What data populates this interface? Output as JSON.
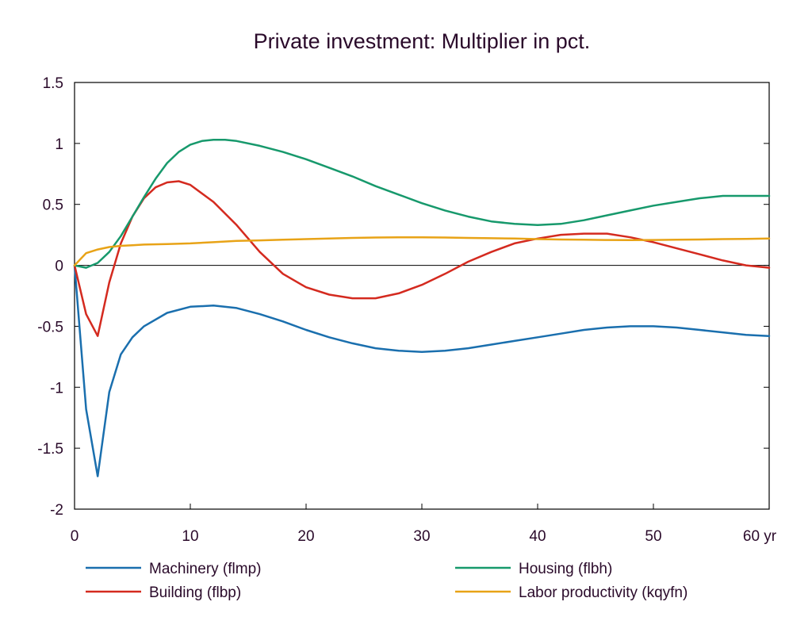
{
  "chart_data": {
    "type": "line",
    "title": "Private investment: Multiplier in pct.",
    "xlabel": "",
    "ylabel": "",
    "xlim": [
      0,
      60
    ],
    "ylim": [
      -2,
      1.5
    ],
    "x_ticks": [
      0,
      10,
      20,
      30,
      40,
      50,
      60
    ],
    "x_tick_labels": [
      "0",
      "10",
      "20",
      "30",
      "40",
      "50",
      "60 yr"
    ],
    "y_ticks": [
      1.5,
      1,
      0.5,
      0,
      -0.5,
      -1,
      -1.5,
      -2
    ],
    "y_tick_labels": [
      "1.5",
      "1",
      "0.5",
      "0",
      "-0.5",
      "-1",
      "-1.5",
      "-2"
    ],
    "grid": false,
    "zero_line": true,
    "legend_position": "bottom",
    "series": [
      {
        "name": "Machinery (flmp)",
        "color": "#1a6fae",
        "x": [
          0,
          1,
          2,
          3,
          4,
          5,
          6,
          8,
          10,
          12,
          14,
          16,
          18,
          20,
          22,
          24,
          26,
          28,
          30,
          32,
          34,
          36,
          38,
          40,
          42,
          44,
          46,
          48,
          50,
          52,
          54,
          56,
          58,
          60
        ],
        "y": [
          0,
          -1.18,
          -1.73,
          -1.04,
          -0.73,
          -0.59,
          -0.5,
          -0.39,
          -0.34,
          -0.33,
          -0.35,
          -0.4,
          -0.46,
          -0.53,
          -0.59,
          -0.64,
          -0.68,
          -0.7,
          -0.71,
          -0.7,
          -0.68,
          -0.65,
          -0.62,
          -0.59,
          -0.56,
          -0.53,
          -0.51,
          -0.5,
          -0.5,
          -0.51,
          -0.53,
          -0.55,
          -0.57,
          -0.58
        ]
      },
      {
        "name": "Building (flbp)",
        "color": "#d42a1f",
        "x": [
          0,
          1,
          2,
          3,
          4,
          5,
          6,
          7,
          8,
          9,
          10,
          12,
          14,
          16,
          18,
          20,
          22,
          24,
          26,
          28,
          30,
          32,
          34,
          36,
          38,
          40,
          42,
          44,
          46,
          48,
          50,
          52,
          54,
          56,
          58,
          60
        ],
        "y": [
          0,
          -0.4,
          -0.58,
          -0.14,
          0.18,
          0.4,
          0.55,
          0.64,
          0.68,
          0.69,
          0.66,
          0.52,
          0.33,
          0.11,
          -0.07,
          -0.18,
          -0.24,
          -0.27,
          -0.27,
          -0.23,
          -0.16,
          -0.07,
          0.03,
          0.11,
          0.18,
          0.22,
          0.25,
          0.26,
          0.26,
          0.23,
          0.19,
          0.14,
          0.09,
          0.04,
          0.0,
          -0.02
        ]
      },
      {
        "name": "Housing (flbh)",
        "color": "#17996c",
        "x": [
          0,
          1,
          2,
          3,
          4,
          5,
          6,
          7,
          8,
          9,
          10,
          11,
          12,
          13,
          14,
          16,
          18,
          20,
          22,
          24,
          26,
          28,
          30,
          32,
          34,
          36,
          38,
          40,
          42,
          44,
          46,
          48,
          50,
          52,
          54,
          56,
          58,
          60
        ],
        "y": [
          0,
          -0.02,
          0.02,
          0.11,
          0.24,
          0.4,
          0.56,
          0.71,
          0.84,
          0.93,
          0.99,
          1.02,
          1.03,
          1.03,
          1.02,
          0.98,
          0.93,
          0.87,
          0.8,
          0.73,
          0.65,
          0.58,
          0.51,
          0.45,
          0.4,
          0.36,
          0.34,
          0.33,
          0.34,
          0.37,
          0.41,
          0.45,
          0.49,
          0.52,
          0.55,
          0.57,
          0.57,
          0.57
        ]
      },
      {
        "name": "Labor productivity (kqyfn)",
        "color": "#e8a317",
        "x": [
          0,
          1,
          2,
          3,
          4,
          5,
          6,
          8,
          10,
          12,
          14,
          16,
          18,
          20,
          22,
          24,
          26,
          28,
          30,
          32,
          34,
          36,
          38,
          40,
          42,
          44,
          46,
          48,
          50,
          52,
          54,
          56,
          58,
          60
        ],
        "y": [
          0,
          0.1,
          0.13,
          0.15,
          0.16,
          0.165,
          0.17,
          0.175,
          0.18,
          0.19,
          0.2,
          0.205,
          0.21,
          0.215,
          0.22,
          0.225,
          0.228,
          0.23,
          0.23,
          0.228,
          0.225,
          0.222,
          0.22,
          0.215,
          0.212,
          0.21,
          0.208,
          0.207,
          0.208,
          0.21,
          0.212,
          0.215,
          0.217,
          0.22
        ]
      }
    ]
  }
}
